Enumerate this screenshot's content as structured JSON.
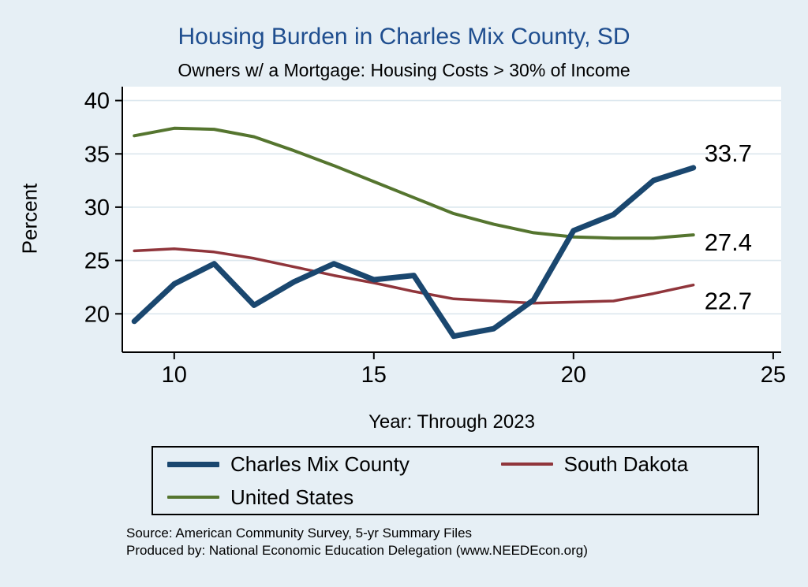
{
  "colors": {
    "background": "#e6eff5",
    "plot_background": "#ffffff",
    "grid": "#dce7ee",
    "axis": "#000000",
    "title": "#1f4e8f"
  },
  "chart_data": {
    "type": "line",
    "title": "Housing Burden in Charles Mix County, SD",
    "subtitle": "Owners w/ a Mortgage: Housing Costs > 30% of Income",
    "xlabel": "Year: Through 2023",
    "ylabel": "Percent",
    "x": [
      9,
      10,
      11,
      12,
      13,
      14,
      15,
      16,
      17,
      18,
      19,
      20,
      21,
      22,
      23
    ],
    "xticks": [
      10,
      15,
      20,
      25
    ],
    "yticks": [
      20,
      25,
      30,
      35,
      40
    ],
    "xlim": [
      8.7,
      25.2
    ],
    "ylim": [
      16.4,
      41.3
    ],
    "grid": "horizontal",
    "legend_position": "bottom",
    "series": [
      {
        "key": "charles-mix-county",
        "name": "Charles Mix County",
        "color": "#1a476f",
        "width": 7,
        "end_label": "33.7",
        "values": [
          19.3,
          22.8,
          24.7,
          20.8,
          23.0,
          24.7,
          23.2,
          23.6,
          17.9,
          18.6,
          21.3,
          27.8,
          29.3,
          32.5,
          33.7
        ]
      },
      {
        "key": "south-dakota",
        "name": "South Dakota",
        "color": "#90353b",
        "width": 3.5,
        "end_label": "22.7",
        "values": [
          25.9,
          26.1,
          25.8,
          25.2,
          24.4,
          23.6,
          22.9,
          22.1,
          21.4,
          21.2,
          21.0,
          21.1,
          21.2,
          21.9,
          22.7
        ]
      },
      {
        "key": "united-states",
        "name": "United States",
        "color": "#55752f",
        "width": 4,
        "end_label": "27.4",
        "values": [
          36.7,
          37.4,
          37.3,
          36.6,
          35.3,
          33.9,
          32.4,
          30.9,
          29.4,
          28.4,
          27.6,
          27.2,
          27.1,
          27.1,
          27.4
        ]
      }
    ]
  },
  "footer": {
    "source": "Source: American Community Survey, 5-yr Summary Files",
    "produced_by": "Produced by: National Economic Education Delegation (www.NEEDEcon.org)"
  }
}
